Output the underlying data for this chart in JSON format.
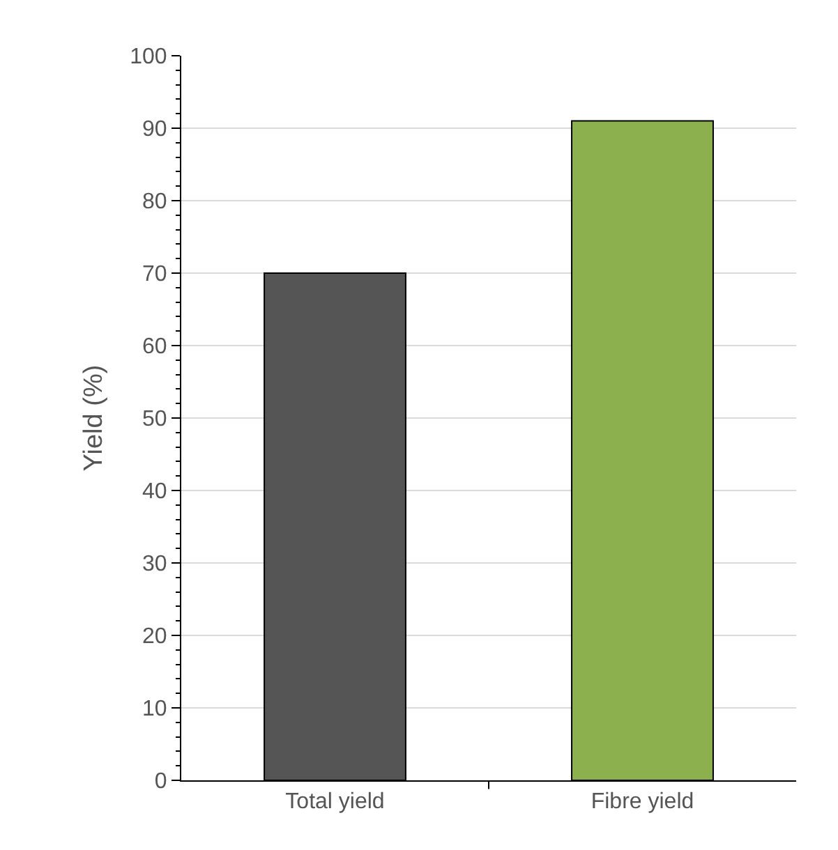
{
  "chart_data": {
    "type": "bar",
    "ylabel": "Yield (%)",
    "categories": [
      "Total yield",
      "Fibre yield"
    ],
    "values": [
      70,
      91
    ],
    "colors": [
      "#555555",
      "#8db04f"
    ],
    "ylim": [
      0,
      100
    ],
    "yticks": [
      0,
      10,
      20,
      30,
      40,
      50,
      60,
      70,
      80,
      90,
      100
    ],
    "grid": "y"
  }
}
